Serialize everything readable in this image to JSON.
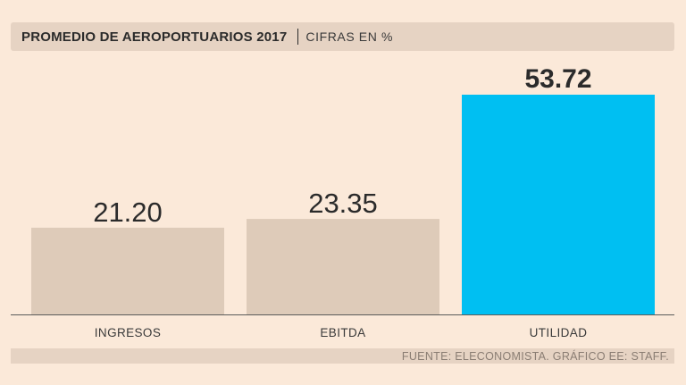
{
  "header": {
    "title": "PROMEDIO DE AEROPORTUARIOS 2017",
    "subtitle": "CIFRAS EN %"
  },
  "footer": {
    "source": "FUENTE: ELECONOMISTA. GRÁFICO EE: STAFF."
  },
  "colors": {
    "bar_default": "#decbb9",
    "bar_highlight": "#00bff2",
    "axis": "#5a5a5a",
    "label_text": "#2b2b2b"
  },
  "chart_data": {
    "type": "bar",
    "title": "PROMEDIO DE AEROPORTUARIOS 2017",
    "subtitle": "CIFRAS EN %",
    "categories": [
      "INGRESOS",
      "EBITDA",
      "UTILIDAD"
    ],
    "values": [
      21.2,
      23.35,
      53.72
    ],
    "value_labels": [
      "21.20",
      "23.35",
      "53.72"
    ],
    "highlight_index": 2,
    "xlabel": "",
    "ylabel": "",
    "ylim": [
      0,
      53.72
    ],
    "grid": false,
    "legend": "none"
  }
}
